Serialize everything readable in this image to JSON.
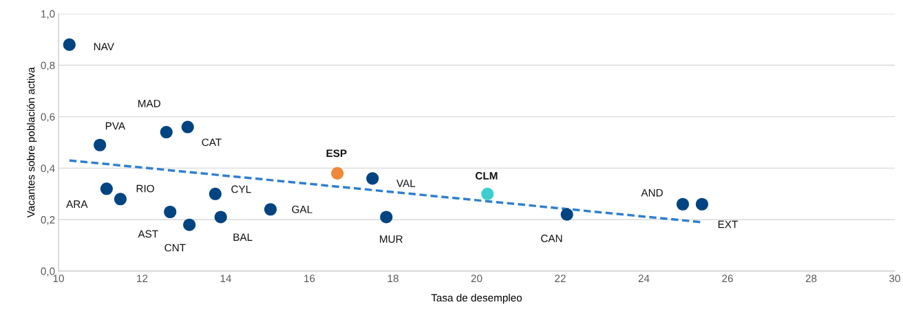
{
  "chart_data": {
    "type": "scatter",
    "xlabel": "Tasa de desempleo",
    "ylabel": "Vacantes sobre población activa",
    "xlim": [
      10,
      30
    ],
    "xticks": [
      10,
      12,
      14,
      16,
      18,
      20,
      22,
      24,
      26,
      28,
      30
    ],
    "ylim": [
      0,
      1
    ],
    "yticks": [
      {
        "value": 0,
        "label": "0,0"
      },
      {
        "value": 0.2,
        "label": "0,2"
      },
      {
        "value": 0.4,
        "label": "0,4"
      },
      {
        "value": 0.6,
        "label": "0,6"
      },
      {
        "value": 0.8,
        "label": "0,8"
      },
      {
        "value": 1.0,
        "label": "1,0"
      }
    ],
    "grid": "y",
    "marker": "circle",
    "series": [
      {
        "name": "NAV",
        "color": "#004481",
        "x": [
          10.26
        ],
        "values": [
          0.88
        ]
      },
      {
        "name": "PVA",
        "color": "#004481",
        "x": [
          10.99
        ],
        "values": [
          0.49
        ]
      },
      {
        "name": "ARA",
        "color": "#004481",
        "x": [
          11.15
        ],
        "values": [
          0.32
        ]
      },
      {
        "name": "RIO",
        "color": "#004481",
        "x": [
          11.48
        ],
        "values": [
          0.28
        ]
      },
      {
        "name": "MAD",
        "color": "#004481",
        "x": [
          12.58
        ],
        "values": [
          0.54
        ]
      },
      {
        "name": "CAT",
        "color": "#004481",
        "x": [
          13.09
        ],
        "values": [
          0.56
        ]
      },
      {
        "name": "AST",
        "color": "#004481",
        "x": [
          12.67
        ],
        "values": [
          0.23
        ]
      },
      {
        "name": "CNT",
        "color": "#004481",
        "x": [
          13.13
        ],
        "values": [
          0.18
        ]
      },
      {
        "name": "CYL",
        "color": "#004481",
        "x": [
          13.75
        ],
        "values": [
          0.3
        ]
      },
      {
        "name": "BAL",
        "color": "#004481",
        "x": [
          13.88
        ],
        "values": [
          0.21
        ]
      },
      {
        "name": "GAL",
        "color": "#004481",
        "x": [
          15.07
        ],
        "values": [
          0.24
        ]
      },
      {
        "name": "ESP",
        "color": "#f0883a",
        "x": [
          16.67
        ],
        "values": [
          0.38
        ]
      },
      {
        "name": "VAL",
        "color": "#004481",
        "x": [
          17.51
        ],
        "values": [
          0.36
        ]
      },
      {
        "name": "MUR",
        "color": "#004481",
        "x": [
          17.84
        ],
        "values": [
          0.21
        ]
      },
      {
        "name": "CLM",
        "color": "#3dcfcf",
        "x": [
          20.26
        ],
        "values": [
          0.3
        ]
      },
      {
        "name": "CAN",
        "color": "#004481",
        "x": [
          22.16
        ],
        "values": [
          0.22
        ]
      },
      {
        "name": "AND",
        "color": "#004481",
        "x": [
          24.93
        ],
        "values": [
          0.26
        ]
      },
      {
        "name": "EXT",
        "color": "#004481",
        "x": [
          25.39
        ],
        "values": [
          0.26
        ]
      },
      {
        "type": "line",
        "color": "#2e7fd0",
        "line_style": "dashed",
        "marker": "none",
        "x": [
          10.26,
          25.39
        ],
        "values": [
          0.43,
          0.19
        ]
      }
    ]
  }
}
